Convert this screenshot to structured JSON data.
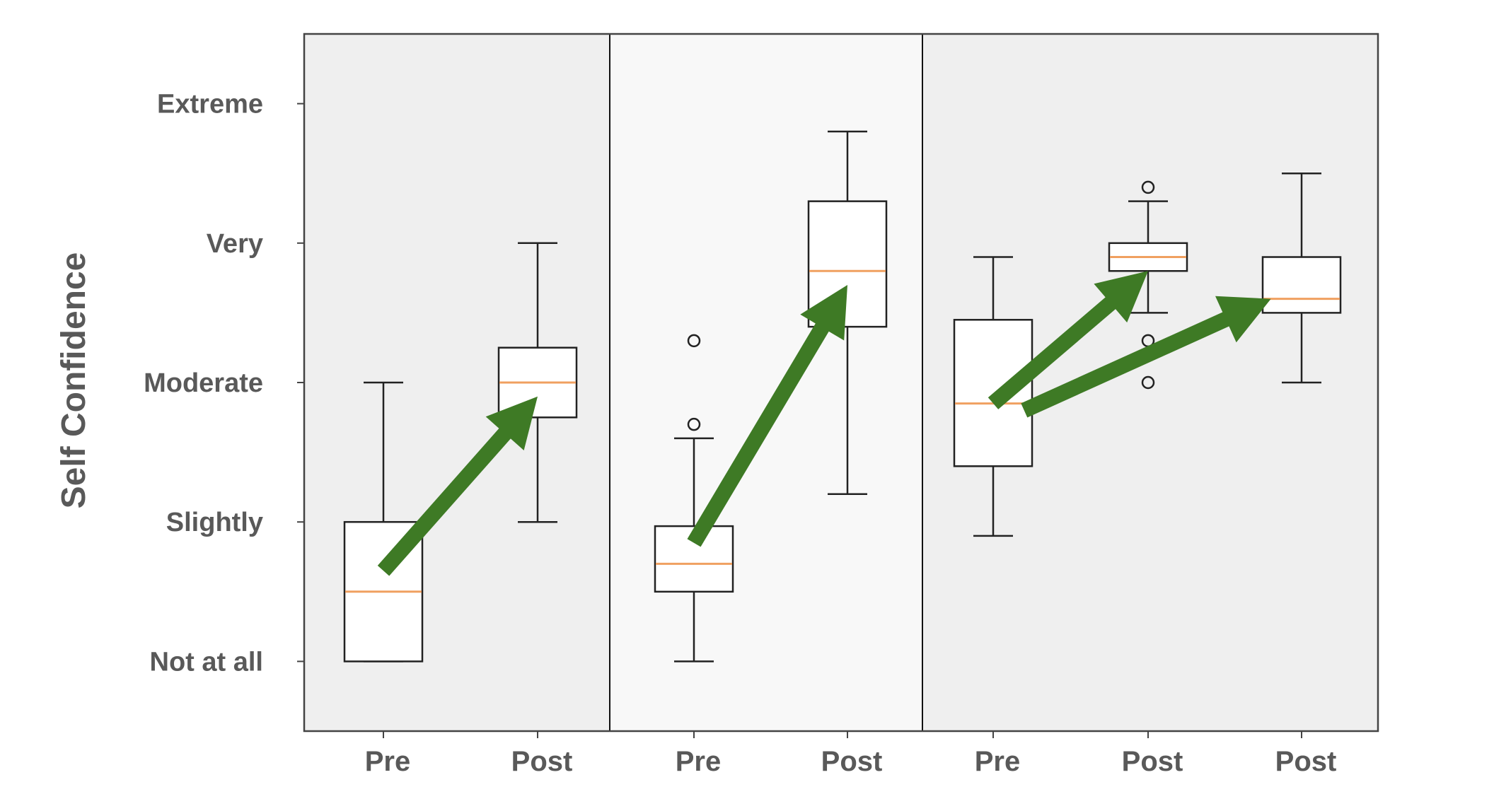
{
  "chart_data": {
    "type": "box",
    "title": "",
    "ylabel": "Self Confidence",
    "y_tick_labels": [
      "Not at all",
      "Slightly",
      "Moderate",
      "Very",
      "Extreme"
    ],
    "y_tick_values": [
      1,
      2,
      3,
      4,
      5
    ],
    "ylim": [
      0.5,
      5.5
    ],
    "grid": false,
    "colors": {
      "panel_1": "#efefef",
      "panel_2": "#f8f8f8",
      "panel_3": "#efefef",
      "box_fill": "#ffffff",
      "box_stroke": "#222222",
      "median": "#f0a060",
      "arrow": "#3e7a25"
    },
    "panels": [
      {
        "boxes": [
          {
            "label": "Pre",
            "whisker_low": 1.0,
            "q1": 1.0,
            "median": 1.5,
            "q3": 2.0,
            "whisker_high": 3.0,
            "outliers": []
          },
          {
            "label": "Post",
            "whisker_low": 2.0,
            "q1": 2.75,
            "median": 3.0,
            "q3": 3.25,
            "whisker_high": 4.0,
            "outliers": []
          }
        ],
        "arrows": [
          {
            "from": [
              0,
              1.65
            ],
            "to": [
              1,
              2.9
            ]
          }
        ]
      },
      {
        "boxes": [
          {
            "label": "Pre",
            "whisker_low": 1.0,
            "q1": 1.5,
            "median": 1.7,
            "q3": 1.97,
            "whisker_high": 2.6,
            "outliers": [
              2.7,
              3.3
            ]
          },
          {
            "label": "Post",
            "whisker_low": 2.2,
            "q1": 3.4,
            "median": 3.8,
            "q3": 4.3,
            "whisker_high": 4.8,
            "outliers": []
          }
        ],
        "arrows": [
          {
            "from": [
              0,
              1.85
            ],
            "to": [
              1,
              3.7
            ]
          }
        ]
      },
      {
        "boxes": [
          {
            "label": "Pre",
            "whisker_low": 1.9,
            "q1": 2.4,
            "median": 2.85,
            "q3": 3.45,
            "whisker_high": 3.9,
            "outliers": []
          },
          {
            "label": "Post",
            "whisker_low": 3.5,
            "q1": 3.8,
            "median": 3.9,
            "q3": 4.0,
            "whisker_high": 4.3,
            "outliers": [
              3.0,
              3.3,
              4.4
            ]
          },
          {
            "label": "Post",
            "whisker_low": 3.0,
            "q1": 3.5,
            "median": 3.6,
            "q3": 3.9,
            "whisker_high": 4.5,
            "outliers": []
          }
        ],
        "arrows": [
          {
            "from": [
              0,
              2.85
            ],
            "to": [
              1,
              3.8
            ]
          },
          {
            "from": [
              0.2,
              2.8
            ],
            "to": [
              1.8,
              3.6
            ]
          }
        ]
      }
    ]
  }
}
